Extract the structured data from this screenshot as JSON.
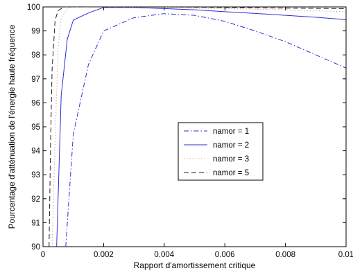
{
  "chart_data": {
    "type": "line",
    "title": "",
    "xlabel": "Rapport d'amortissement critique",
    "ylabel": "Pourcentage d'atténuation de l'énergie haute fréquence",
    "xlim": [
      0,
      0.01
    ],
    "ylim": [
      90,
      100
    ],
    "x_ticks": [
      0,
      0.002,
      0.004,
      0.006,
      0.008,
      0.01
    ],
    "x_tick_labels": [
      "0",
      "0.002",
      "0.004",
      "0.006",
      "0.008",
      "0.01"
    ],
    "y_ticks": [
      90,
      91,
      92,
      93,
      94,
      95,
      96,
      97,
      98,
      99,
      100
    ],
    "y_tick_labels": [
      "90",
      "91",
      "92",
      "93",
      "94",
      "95",
      "96",
      "97",
      "98",
      "99",
      "100"
    ],
    "grid": false,
    "legend_position": "center-right",
    "series": [
      {
        "name": "namor = 1",
        "style": "dashdot",
        "color": "#2b2bd6",
        "x": [
          0.00075,
          0.001,
          0.0015,
          0.002,
          0.003,
          0.004,
          0.005,
          0.006,
          0.007,
          0.008,
          0.009,
          0.01
        ],
        "y": [
          90.0,
          94.7,
          97.6,
          99.0,
          99.55,
          99.72,
          99.65,
          99.4,
          99.0,
          98.55,
          98.0,
          97.45
        ]
      },
      {
        "name": "namor = 2",
        "style": "solid",
        "color": "#2b2bd6",
        "x": [
          0.00045,
          0.0006,
          0.0008,
          0.001,
          0.0015,
          0.002,
          0.003,
          0.004,
          0.005,
          0.006,
          0.007,
          0.008,
          0.009,
          0.01
        ],
        "y": [
          90.0,
          96.3,
          98.65,
          99.45,
          99.75,
          99.98,
          99.98,
          99.93,
          99.88,
          99.8,
          99.73,
          99.65,
          99.57,
          99.47
        ]
      },
      {
        "name": "namor = 3",
        "style": "dotted",
        "color": "#e08a8a",
        "x": [
          0.0003,
          0.0004,
          0.0005,
          0.0006,
          0.0008,
          0.001,
          0.002,
          0.004,
          0.006,
          0.008,
          0.01
        ],
        "y": [
          90.0,
          94.5,
          98.3,
          99.5,
          99.95,
          100.0,
          100.0,
          99.97,
          99.93,
          99.88,
          99.8
        ]
      },
      {
        "name": "namor = 5",
        "style": "dashed",
        "color": "#222222",
        "x": [
          0.0002,
          0.00025,
          0.0003,
          0.0004,
          0.0005,
          0.0007,
          0.001,
          0.002,
          0.004,
          0.006,
          0.008,
          0.01
        ],
        "y": [
          90.0,
          94.3,
          97.4,
          99.45,
          99.85,
          100.0,
          100.0,
          100.0,
          100.0,
          99.98,
          99.95,
          99.93
        ]
      }
    ]
  }
}
